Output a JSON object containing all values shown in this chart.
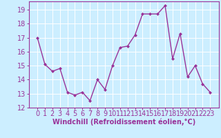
{
  "x": [
    0,
    1,
    2,
    3,
    4,
    5,
    6,
    7,
    8,
    9,
    10,
    11,
    12,
    13,
    14,
    15,
    16,
    17,
    18,
    19,
    20,
    21,
    22,
    23
  ],
  "y": [
    17.0,
    15.1,
    14.6,
    14.8,
    13.1,
    12.9,
    13.1,
    12.5,
    14.0,
    13.3,
    15.0,
    16.3,
    16.4,
    17.2,
    18.7,
    18.7,
    18.7,
    19.3,
    15.5,
    17.3,
    14.2,
    15.0,
    13.7,
    13.1
  ],
  "line_color": "#993399",
  "marker": "D",
  "marker_size": 2.0,
  "bg_color": "#cceeff",
  "grid_color": "#ffffff",
  "xlabel": "Windchill (Refroidissement éolien,°C)",
  "xlabel_color": "#993399",
  "tick_color": "#993399",
  "axis_label_color": "#993399",
  "ylim": [
    12,
    19.6
  ],
  "yticks": [
    12,
    13,
    14,
    15,
    16,
    17,
    18,
    19
  ],
  "xticks": [
    0,
    1,
    2,
    3,
    4,
    5,
    6,
    7,
    8,
    9,
    10,
    11,
    12,
    13,
    14,
    15,
    16,
    17,
    18,
    19,
    20,
    21,
    22,
    23
  ],
  "spine_color": "#993399",
  "figsize": [
    3.2,
    2.0
  ],
  "dpi": 100,
  "tick_fontsize": 7,
  "xlabel_fontsize": 7,
  "xlabel_fontweight": "bold",
  "linewidth": 1.0
}
